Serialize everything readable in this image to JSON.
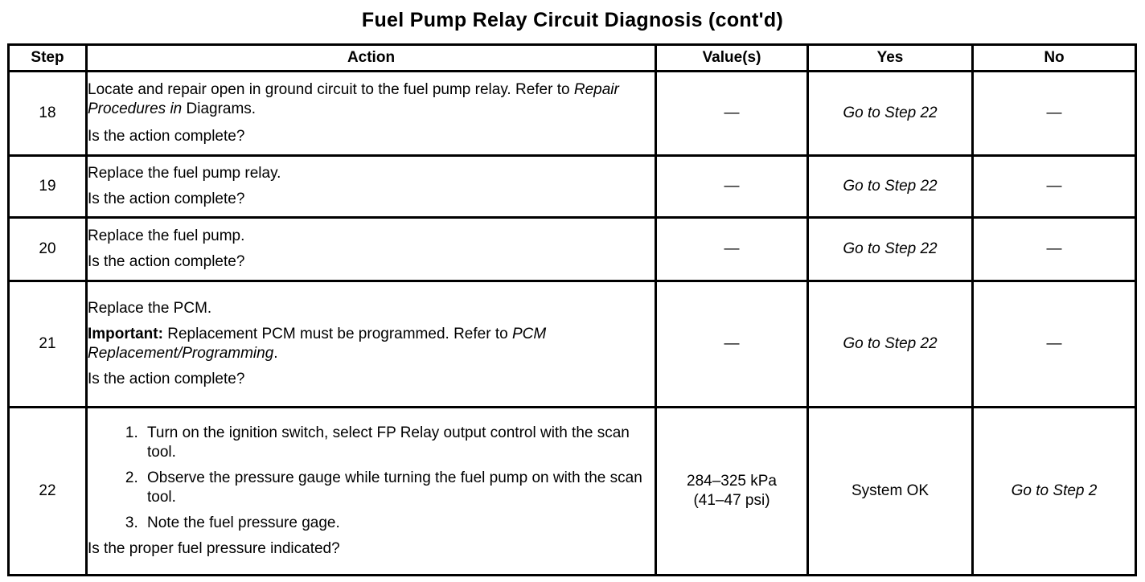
{
  "title": "Fuel Pump Relay Circuit Diagnosis (cont'd)",
  "columns": {
    "step": "Step",
    "action": "Action",
    "values": "Value(s)",
    "yes": "Yes",
    "no": "No"
  },
  "rows": [
    {
      "step": "18",
      "action_pre": "Locate and repair open in ground circuit to the fuel pump relay. Refer to ",
      "action_ref": "Repair Procedures in",
      "action_post": " Diagrams.",
      "question": "Is the action complete?",
      "value": "—",
      "yes": "Go to Step 22",
      "no": "—"
    },
    {
      "step": "19",
      "action": "Replace the fuel pump relay.",
      "question": "Is the action complete?",
      "value": "—",
      "yes": "Go to Step 22",
      "no": "—"
    },
    {
      "step": "20",
      "action": "Replace the fuel pump.",
      "question": "Is the action complete?",
      "value": "—",
      "yes": "Go to Step 22",
      "no": "—"
    },
    {
      "step": "21",
      "action": "Replace the PCM.",
      "important_label": "Important:",
      "important_text": " Replacement PCM must be programmed. Refer to ",
      "important_ref": "PCM Replacement/Programming",
      "important_end": ".",
      "question": "Is the action complete?",
      "value": "—",
      "yes": "Go to Step 22",
      "no": "—"
    },
    {
      "step": "22",
      "substeps": [
        "Turn on the ignition switch, select FP Relay output control with the scan tool.",
        "Observe the pressure gauge while turning the fuel pump on with the scan tool.",
        "Note the fuel pressure gage."
      ],
      "question": "Is the proper fuel pressure indicated?",
      "value_line1": "284–325 kPa",
      "value_line2": "(41–47 psi)",
      "yes": "System OK",
      "no": "Go to Step 2"
    }
  ]
}
